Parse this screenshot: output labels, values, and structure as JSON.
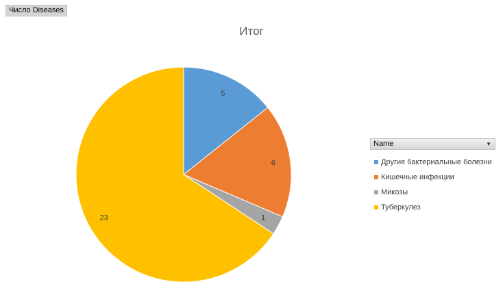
{
  "field_button": {
    "label": "Число Diseases"
  },
  "legend": {
    "header": "Name"
  },
  "colors": {
    "series": [
      "#5b9bd5",
      "#ed7d31",
      "#a5a5a5",
      "#ffc000"
    ],
    "slice_border": "#ffffff",
    "title": "#595959"
  },
  "icons": {
    "dropdown": "triangle-down"
  },
  "chart_data": {
    "type": "pie",
    "title": "Итог",
    "categories": [
      "Другие бактериальные болезни",
      "Кишечные инфекции",
      "Микозы",
      "Туберкулез"
    ],
    "values": [
      5,
      6,
      1,
      23
    ],
    "data_labels": [
      "5",
      "6",
      "1",
      "23"
    ],
    "start_angle": "12 o'clock",
    "direction": "clockwise",
    "legend_position": "right"
  }
}
